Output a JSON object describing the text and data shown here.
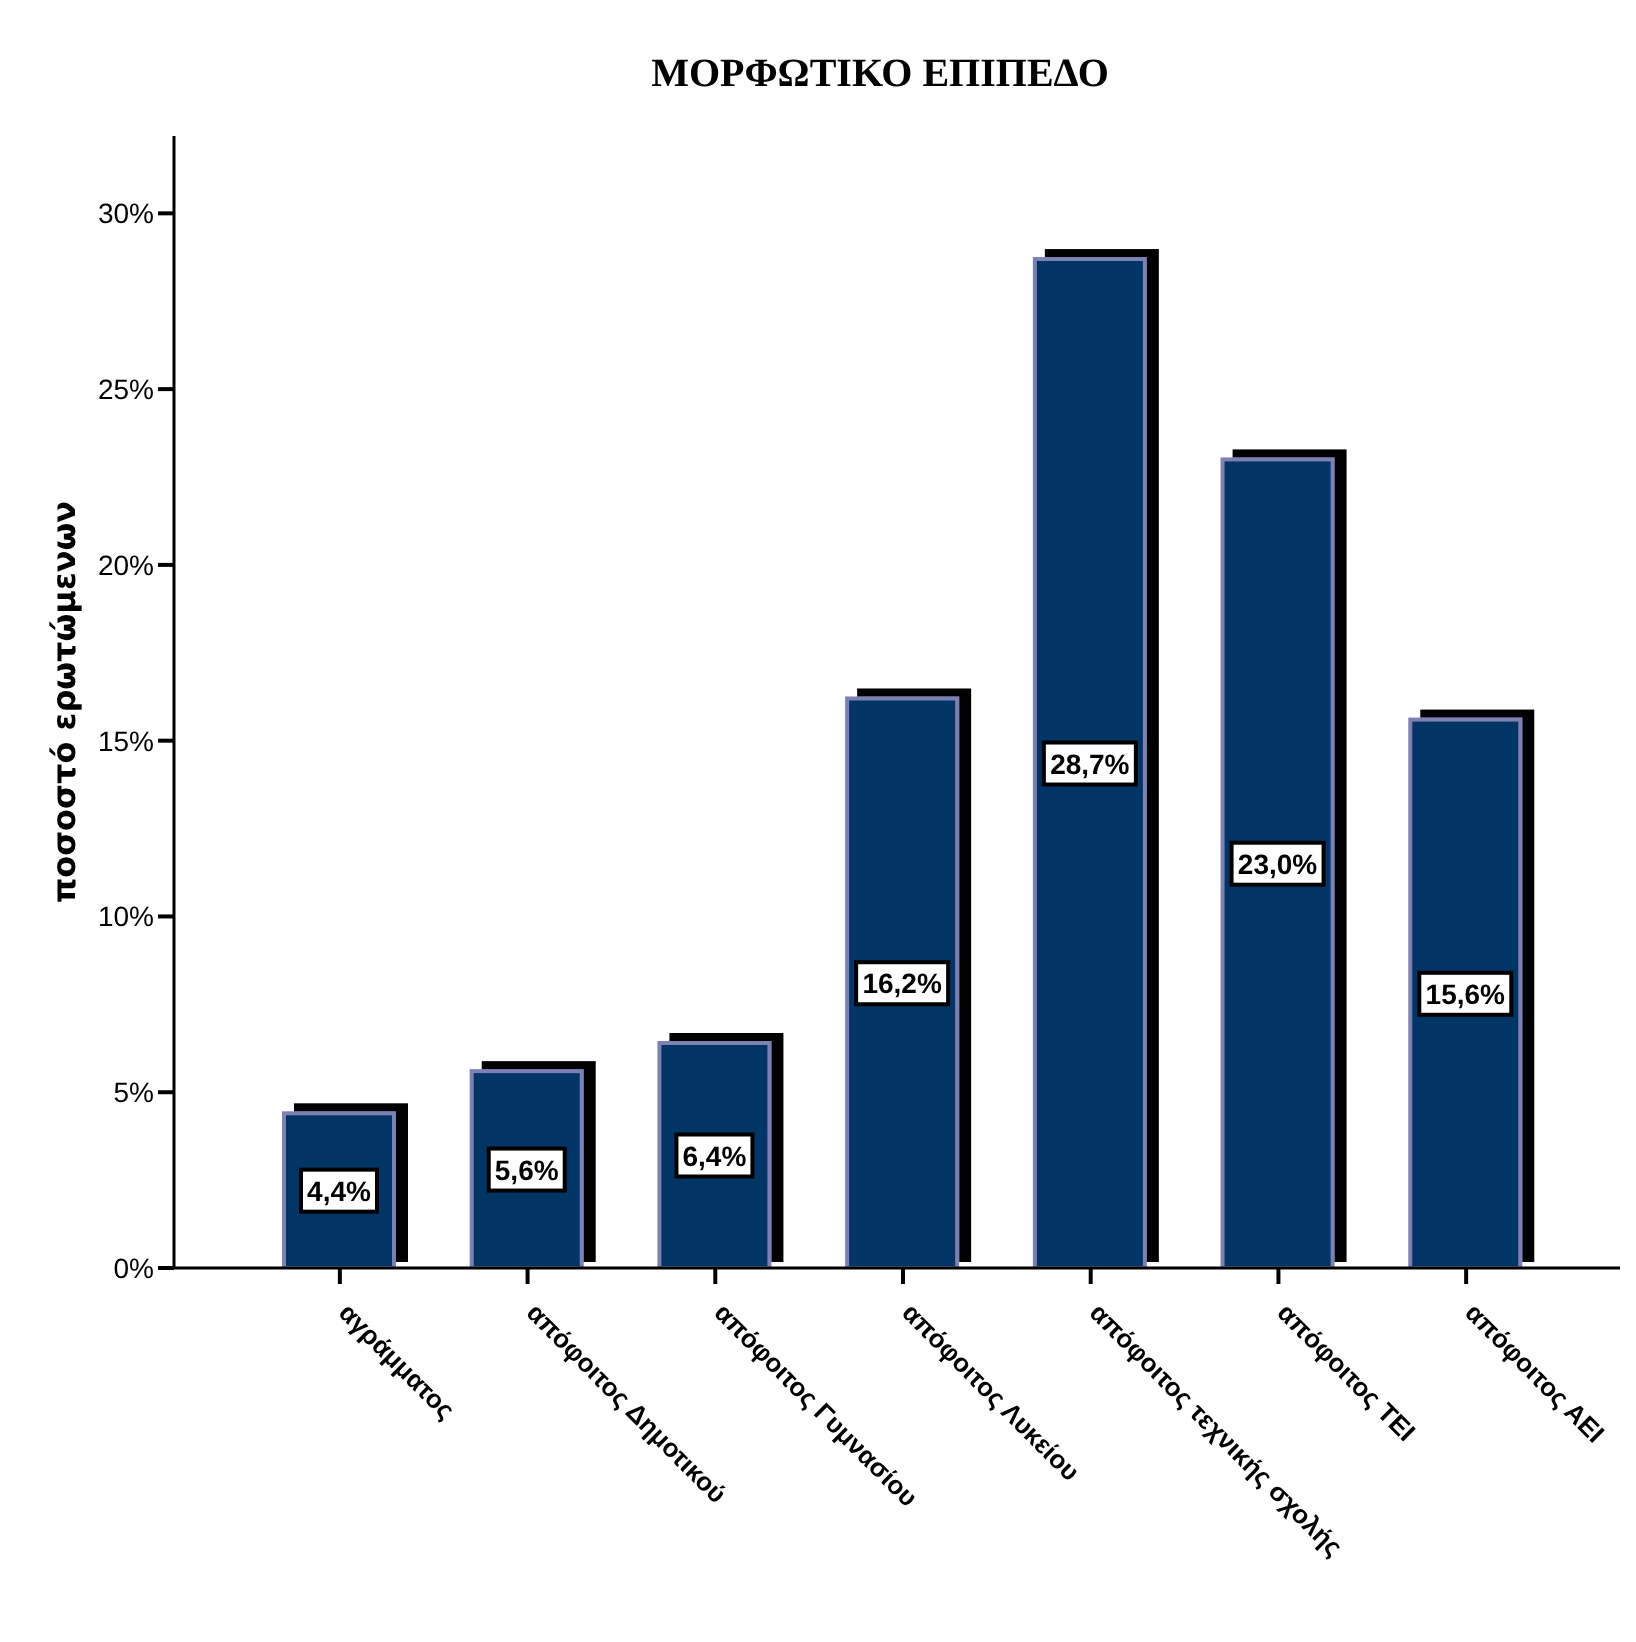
{
  "chart_data": {
    "type": "bar",
    "title": "ΜΟΡΦΩΤΙΚΟ ΕΠΙΠΕΔΟ",
    "ylabel": "ποσοστό ερωτώμενων",
    "categories": [
      "αγράμματος",
      "απόφοιτος Δημοτικού",
      "απόφοιτος Γυμνασίου",
      "απόφοιτος Λυκείου",
      "απόφοιτος τεχνικής σχολής",
      "απόφοιτος ΤΕΙ",
      "απόφοιτος ΑΕΙ"
    ],
    "values": [
      4.4,
      5.6,
      6.4,
      16.2,
      28.7,
      23.0,
      15.6
    ],
    "color": "#023466",
    "value_labels": [
      "4,4%",
      "5,6%",
      "6,4%",
      "16,2%",
      "28,7%",
      "23,0%",
      "15,6%"
    ],
    "ylim": [
      0,
      32.2
    ],
    "yticks": [
      {
        "value": 0,
        "label": "0%"
      },
      {
        "value": 5,
        "label": "5%"
      },
      {
        "value": 10,
        "label": "10%"
      },
      {
        "value": 15,
        "label": "15%"
      },
      {
        "value": 20,
        "label": "20%"
      },
      {
        "value": 25,
        "label": "25%"
      },
      {
        "value": 30,
        "label": "30%"
      }
    ]
  }
}
